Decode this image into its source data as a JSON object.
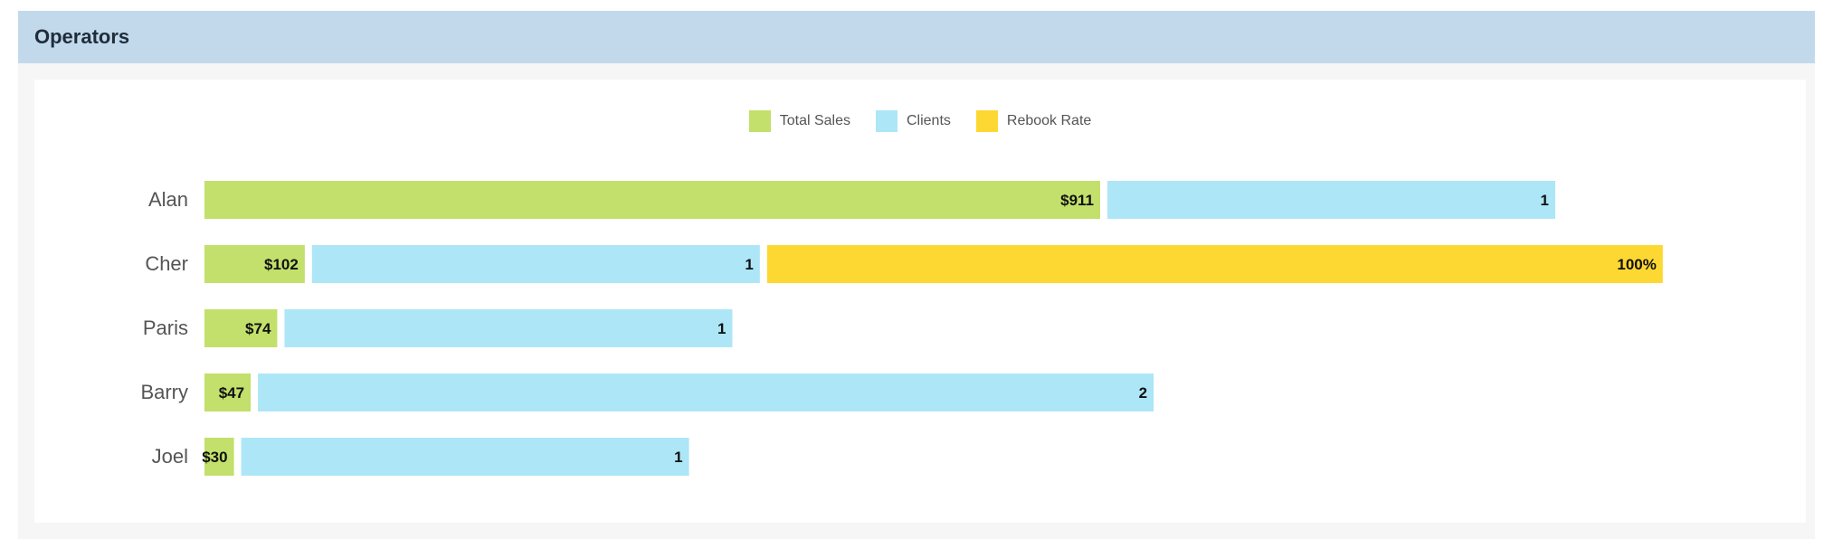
{
  "panel": {
    "title": "Operators"
  },
  "colors": {
    "total_sales": "#c2e06b",
    "clients": "#ade6f7",
    "rebook_rate": "#fed832",
    "header_bg": "#c2d9ec"
  },
  "chart_data": {
    "type": "bar",
    "orientation": "horizontal",
    "stacked": true,
    "categories": [
      "Alan",
      "Cher",
      "Paris",
      "Barry",
      "Joel"
    ],
    "series": [
      {
        "name": "Total Sales",
        "key": "total_sales",
        "values": [
          911,
          102,
          74,
          47,
          30
        ],
        "labels": [
          "$911",
          "$102",
          "$74",
          "$47",
          "$30"
        ]
      },
      {
        "name": "Clients",
        "key": "clients",
        "values": [
          1,
          1,
          1,
          2,
          1
        ],
        "labels": [
          "1",
          "1",
          "1",
          "2",
          "1"
        ]
      },
      {
        "name": "Rebook Rate",
        "key": "rebook_rate",
        "values": [
          0,
          100,
          0,
          0,
          0
        ],
        "labels": [
          "",
          "100%",
          "",
          "",
          ""
        ]
      }
    ],
    "legend_position": "top-center",
    "grid": false
  }
}
